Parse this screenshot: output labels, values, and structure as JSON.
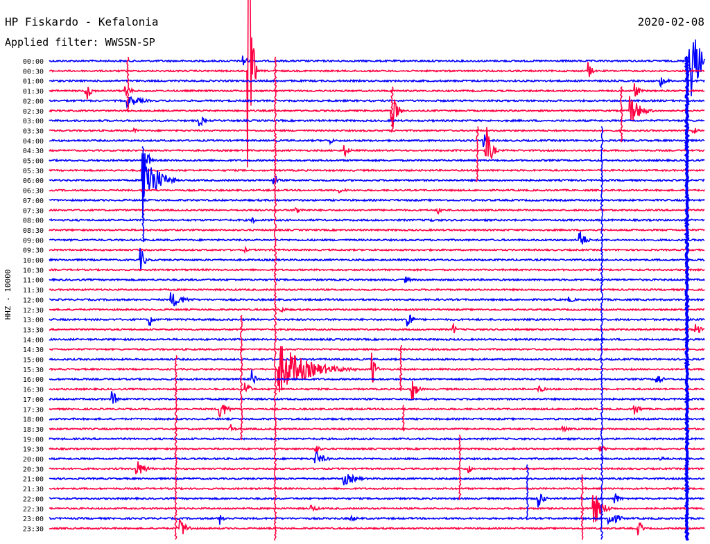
{
  "header": {
    "station": "HP Fiskardo - Kefalonia",
    "filter_label": "Applied filter: WWSSN-SP",
    "date": "2020-02-08"
  },
  "colors": {
    "trace_blue": "#0000ff",
    "trace_red": "#ff0040",
    "background": "#ffffff"
  },
  "chart_data": {
    "type": "line",
    "title": "HP Fiskardo - Kefalonia",
    "subtitle": "Applied filter: WWSSN-SP",
    "ylabel": "HHZ - 10000",
    "rows": [
      {
        "label": "00:00",
        "color": "blue"
      },
      {
        "label": "00:30",
        "color": "red"
      },
      {
        "label": "01:00",
        "color": "blue"
      },
      {
        "label": "01:30",
        "color": "red"
      },
      {
        "label": "02:00",
        "color": "blue"
      },
      {
        "label": "02:30",
        "color": "red"
      },
      {
        "label": "03:00",
        "color": "blue"
      },
      {
        "label": "03:30",
        "color": "red"
      },
      {
        "label": "04:00",
        "color": "blue"
      },
      {
        "label": "04:30",
        "color": "red"
      },
      {
        "label": "05:00",
        "color": "blue"
      },
      {
        "label": "05:30",
        "color": "red"
      },
      {
        "label": "06:00",
        "color": "blue"
      },
      {
        "label": "06:30",
        "color": "red"
      },
      {
        "label": "07:00",
        "color": "blue"
      },
      {
        "label": "07:30",
        "color": "red"
      },
      {
        "label": "08:00",
        "color": "blue"
      },
      {
        "label": "08:30",
        "color": "red"
      },
      {
        "label": "09:00",
        "color": "blue"
      },
      {
        "label": "09:30",
        "color": "red"
      },
      {
        "label": "10:00",
        "color": "blue"
      },
      {
        "label": "10:30",
        "color": "red"
      },
      {
        "label": "11:00",
        "color": "blue"
      },
      {
        "label": "11:30",
        "color": "red"
      },
      {
        "label": "12:00",
        "color": "blue"
      },
      {
        "label": "12:30",
        "color": "red"
      },
      {
        "label": "13:00",
        "color": "blue"
      },
      {
        "label": "13:30",
        "color": "red"
      },
      {
        "label": "14:00",
        "color": "blue"
      },
      {
        "label": "14:30",
        "color": "red"
      },
      {
        "label": "15:00",
        "color": "blue"
      },
      {
        "label": "15:30",
        "color": "red"
      },
      {
        "label": "16:00",
        "color": "blue"
      },
      {
        "label": "16:30",
        "color": "red"
      },
      {
        "label": "17:00",
        "color": "blue"
      },
      {
        "label": "17:30",
        "color": "red"
      },
      {
        "label": "18:00",
        "color": "blue"
      },
      {
        "label": "18:30",
        "color": "red"
      },
      {
        "label": "19:00",
        "color": "blue"
      },
      {
        "label": "19:30",
        "color": "red"
      },
      {
        "label": "20:00",
        "color": "blue"
      },
      {
        "label": "20:30",
        "color": "red"
      },
      {
        "label": "21:00",
        "color": "blue"
      },
      {
        "label": "21:30",
        "color": "red"
      },
      {
        "label": "22:00",
        "color": "blue"
      },
      {
        "label": "22:30",
        "color": "red"
      },
      {
        "label": "23:00",
        "color": "blue"
      },
      {
        "label": "23:30",
        "color": "red"
      }
    ],
    "x_range_minutes": [
      0,
      30
    ],
    "events": [
      {
        "row": "00:00",
        "minute": 8.9,
        "amp": 10,
        "dur": 0.5
      },
      {
        "row": "00:00",
        "minute": 29.3,
        "amp": 70,
        "dur": 1.2
      },
      {
        "row": "00:30",
        "minute": 9.1,
        "amp": 250,
        "dur": 0.4
      },
      {
        "row": "00:30",
        "minute": 24.7,
        "amp": 14,
        "dur": 0.4
      },
      {
        "row": "01:00",
        "minute": 28.0,
        "amp": 8,
        "dur": 0.8
      },
      {
        "row": "01:30",
        "minute": 1.7,
        "amp": 16,
        "dur": 0.6
      },
      {
        "row": "01:30",
        "minute": 3.5,
        "amp": 14,
        "dur": 0.5
      },
      {
        "row": "01:30",
        "minute": 26.8,
        "amp": 14,
        "dur": 0.5
      },
      {
        "row": "02:00",
        "minute": 3.6,
        "amp": 10,
        "dur": 1.5
      },
      {
        "row": "02:30",
        "minute": 15.7,
        "amp": 30,
        "dur": 0.6
      },
      {
        "row": "02:30",
        "minute": 26.6,
        "amp": 24,
        "dur": 1.2
      },
      {
        "row": "03:00",
        "minute": 6.9,
        "amp": 10,
        "dur": 0.5
      },
      {
        "row": "03:30",
        "minute": 3.9,
        "amp": 6,
        "dur": 0.3
      },
      {
        "row": "03:30",
        "minute": 29.5,
        "amp": 6,
        "dur": 0.5
      },
      {
        "row": "04:00",
        "minute": 12.9,
        "amp": 6,
        "dur": 0.3
      },
      {
        "row": "04:00",
        "minute": 19.9,
        "amp": 12,
        "dur": 0.4
      },
      {
        "row": "04:30",
        "minute": 13.5,
        "amp": 10,
        "dur": 0.6
      },
      {
        "row": "04:30",
        "minute": 20.0,
        "amp": 40,
        "dur": 0.6
      },
      {
        "row": "05:00",
        "minute": 4.5,
        "amp": 14,
        "dur": 0.4
      },
      {
        "row": "06:00",
        "minute": 4.3,
        "amp": 60,
        "dur": 1.5
      },
      {
        "row": "06:00",
        "minute": 10.3,
        "amp": 12,
        "dur": 0.4
      },
      {
        "row": "06:30",
        "minute": 13.3,
        "amp": 4,
        "dur": 1.0
      },
      {
        "row": "07:30",
        "minute": 11.3,
        "amp": 6,
        "dur": 0.8
      },
      {
        "row": "07:30",
        "minute": 17.8,
        "amp": 6,
        "dur": 0.6
      },
      {
        "row": "08:00",
        "minute": 9.3,
        "amp": 6,
        "dur": 0.5
      },
      {
        "row": "08:00",
        "minute": 17.4,
        "amp": 6,
        "dur": 0.4
      },
      {
        "row": "09:00",
        "minute": 24.3,
        "amp": 18,
        "dur": 0.6
      },
      {
        "row": "09:30",
        "minute": 9.0,
        "amp": 4,
        "dur": 0.3
      },
      {
        "row": "10:00",
        "minute": 4.2,
        "amp": 18,
        "dur": 0.5
      },
      {
        "row": "11:00",
        "minute": 16.3,
        "amp": 5,
        "dur": 0.8
      },
      {
        "row": "12:00",
        "minute": 5.6,
        "amp": 12,
        "dur": 1.5
      },
      {
        "row": "12:00",
        "minute": 23.8,
        "amp": 5,
        "dur": 0.8
      },
      {
        "row": "12:30",
        "minute": 10.6,
        "amp": 5,
        "dur": 0.7
      },
      {
        "row": "13:00",
        "minute": 4.6,
        "amp": 12,
        "dur": 0.4
      },
      {
        "row": "13:00",
        "minute": 16.4,
        "amp": 30,
        "dur": 0.4
      },
      {
        "row": "13:30",
        "minute": 18.5,
        "amp": 10,
        "dur": 0.3
      },
      {
        "row": "13:30",
        "minute": 29.6,
        "amp": 10,
        "dur": 0.6
      },
      {
        "row": "15:30",
        "minute": 10.5,
        "amp": 40,
        "dur": 3.5
      },
      {
        "row": "15:30",
        "minute": 14.8,
        "amp": 25,
        "dur": 0.4
      },
      {
        "row": "16:00",
        "minute": 9.3,
        "amp": 14,
        "dur": 0.4
      },
      {
        "row": "16:00",
        "minute": 27.8,
        "amp": 16,
        "dur": 0.5
      },
      {
        "row": "16:30",
        "minute": 9.0,
        "amp": 14,
        "dur": 0.5
      },
      {
        "row": "16:30",
        "minute": 16.6,
        "amp": 20,
        "dur": 0.6
      },
      {
        "row": "16:30",
        "minute": 22.4,
        "amp": 6,
        "dur": 0.8
      },
      {
        "row": "17:00",
        "minute": 2.9,
        "amp": 14,
        "dur": 0.5
      },
      {
        "row": "17:30",
        "minute": 7.8,
        "amp": 18,
        "dur": 0.8
      },
      {
        "row": "17:30",
        "minute": 26.8,
        "amp": 10,
        "dur": 0.7
      },
      {
        "row": "18:30",
        "minute": 8.3,
        "amp": 8,
        "dur": 0.4
      },
      {
        "row": "18:30",
        "minute": 23.5,
        "amp": 5,
        "dur": 0.8
      },
      {
        "row": "19:30",
        "minute": 12.2,
        "amp": 8,
        "dur": 0.5
      },
      {
        "row": "19:30",
        "minute": 25.2,
        "amp": 6,
        "dur": 0.8
      },
      {
        "row": "20:00",
        "minute": 12.2,
        "amp": 12,
        "dur": 1.0
      },
      {
        "row": "20:00",
        "minute": 28.0,
        "amp": 5,
        "dur": 0.6
      },
      {
        "row": "20:30",
        "minute": 4.0,
        "amp": 14,
        "dur": 1.0
      },
      {
        "row": "20:30",
        "minute": 19.2,
        "amp": 10,
        "dur": 0.3
      },
      {
        "row": "21:00",
        "minute": 13.5,
        "amp": 10,
        "dur": 1.5
      },
      {
        "row": "22:00",
        "minute": 22.4,
        "amp": 20,
        "dur": 0.5
      },
      {
        "row": "22:00",
        "minute": 25.9,
        "amp": 10,
        "dur": 0.6
      },
      {
        "row": "22:30",
        "minute": 12.0,
        "amp": 6,
        "dur": 0.8
      },
      {
        "row": "22:30",
        "minute": 24.9,
        "amp": 30,
        "dur": 1.0
      },
      {
        "row": "23:00",
        "minute": 7.8,
        "amp": 10,
        "dur": 0.6
      },
      {
        "row": "23:00",
        "minute": 13.8,
        "amp": 5,
        "dur": 0.8
      },
      {
        "row": "23:00",
        "minute": 25.6,
        "amp": 16,
        "dur": 1.0
      },
      {
        "row": "23:30",
        "minute": 6.0,
        "amp": 16,
        "dur": 0.8
      },
      {
        "row": "23:30",
        "minute": 27.0,
        "amp": 14,
        "dur": 0.4
      }
    ],
    "long_spikes": [
      {
        "minute": 10.35,
        "from_row": "00:00",
        "to_row": "23:30",
        "color": "red"
      },
      {
        "minute": 29.2,
        "from_row": "00:00",
        "to_row": "23:30",
        "color": "blue"
      },
      {
        "minute": 25.3,
        "from_row": "03:30",
        "to_row": "23:30",
        "color": "blue"
      },
      {
        "minute": 5.8,
        "from_row": "15:00",
        "to_row": "23:30",
        "color": "red"
      },
      {
        "minute": 4.3,
        "from_row": "04:30",
        "to_row": "08:30",
        "color": "blue"
      },
      {
        "minute": 8.8,
        "from_row": "13:00",
        "to_row": "18:30",
        "color": "red"
      },
      {
        "minute": 18.8,
        "from_row": "19:00",
        "to_row": "21:30",
        "color": "red"
      },
      {
        "minute": 21.9,
        "from_row": "20:30",
        "to_row": "22:30",
        "color": "blue"
      },
      {
        "minute": 24.4,
        "from_row": "21:00",
        "to_row": "23:30",
        "color": "red"
      },
      {
        "minute": 15.7,
        "from_row": "01:30",
        "to_row": "03:00",
        "color": "red"
      },
      {
        "minute": 19.6,
        "from_row": "03:30",
        "to_row": "05:30",
        "color": "red"
      },
      {
        "minute": 26.2,
        "from_row": "01:30",
        "to_row": "03:30",
        "color": "red"
      },
      {
        "minute": 3.6,
        "from_row": "00:00",
        "to_row": "02:00",
        "color": "red"
      },
      {
        "minute": 16.2,
        "from_row": "17:30",
        "to_row": "18:00",
        "color": "red"
      },
      {
        "minute": 16.1,
        "from_row": "14:30",
        "to_row": "16:00",
        "color": "red"
      }
    ]
  }
}
